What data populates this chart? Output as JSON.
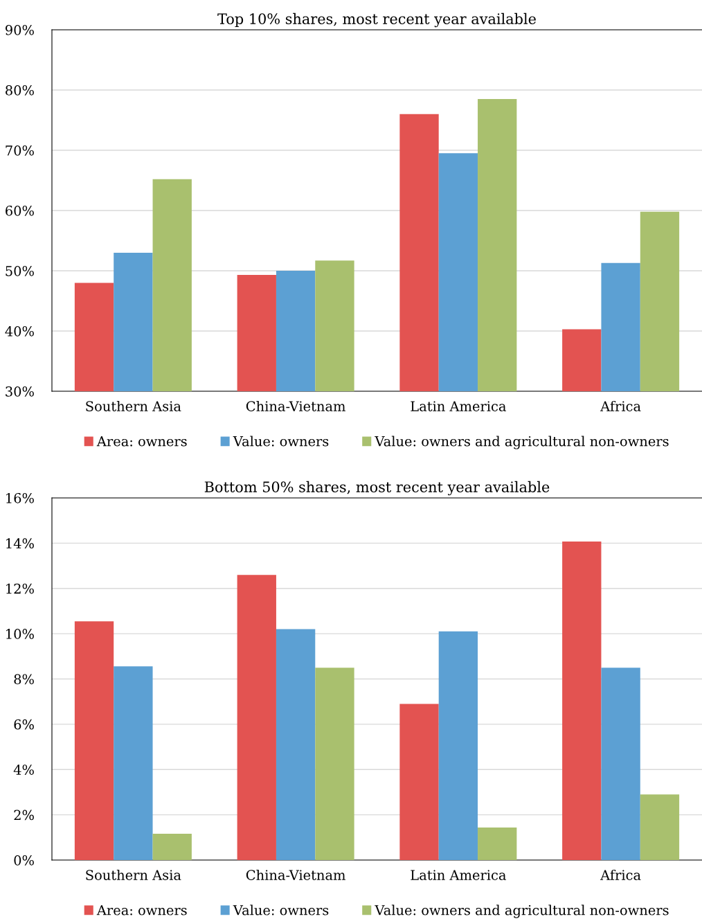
{
  "chart_data": [
    {
      "type": "bar",
      "title": "Top 10% shares, most recent year available",
      "categories": [
        "Southern Asia",
        "China-Vietnam",
        "Latin America",
        "Africa"
      ],
      "series": [
        {
          "name": "Area: owners",
          "color": "#e35351",
          "values": [
            48.0,
            49.3,
            76.0,
            40.3
          ]
        },
        {
          "name": "Value: owners",
          "color": "#5ca0d3",
          "values": [
            53.0,
            50.0,
            69.5,
            51.3
          ]
        },
        {
          "name": "Value: owners and agricultural non-owners",
          "color": "#a9c06e",
          "values": [
            65.2,
            51.7,
            78.5,
            59.8
          ]
        }
      ],
      "ylim": [
        30,
        90
      ],
      "yticks": [
        {
          "value": 30,
          "label": "30%"
        },
        {
          "value": 40,
          "label": "40%"
        },
        {
          "value": 50,
          "label": "50%"
        },
        {
          "value": 60,
          "label": "60%"
        },
        {
          "value": 70,
          "label": "70%"
        },
        {
          "value": 80,
          "label": "80%"
        },
        {
          "value": 90,
          "label": "90%"
        }
      ],
      "grid": "y",
      "legend": "bottom"
    },
    {
      "type": "bar",
      "title": "Bottom 50% shares, most recent year available",
      "categories": [
        "Southern Asia",
        "China-Vietnam",
        "Latin America",
        "Africa"
      ],
      "series": [
        {
          "name": "Area: owners",
          "color": "#e35351",
          "values": [
            10.55,
            12.6,
            6.9,
            14.07
          ]
        },
        {
          "name": "Value: owners",
          "color": "#5ca0d3",
          "values": [
            8.56,
            10.2,
            10.1,
            8.5
          ]
        },
        {
          "name": "Value: owners and agricultural non-owners",
          "color": "#a9c06e",
          "values": [
            1.16,
            8.5,
            1.44,
            2.9
          ]
        }
      ],
      "ylim": [
        0,
        16
      ],
      "yticks": [
        {
          "value": 0,
          "label": "0%"
        },
        {
          "value": 2,
          "label": "2%"
        },
        {
          "value": 4,
          "label": "4%"
        },
        {
          "value": 6,
          "label": "6%"
        },
        {
          "value": 8,
          "label": "8%"
        },
        {
          "value": 10,
          "label": "10%"
        },
        {
          "value": 12,
          "label": "12%"
        },
        {
          "value": 14,
          "label": "14%"
        },
        {
          "value": 16,
          "label": "16%"
        }
      ],
      "grid": "y",
      "legend": "bottom"
    }
  ]
}
